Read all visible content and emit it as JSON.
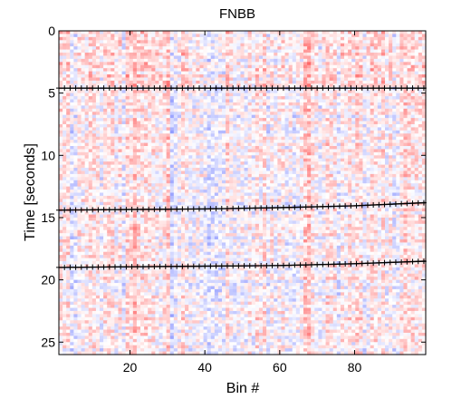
{
  "chart_data": {
    "type": "heatmap",
    "title": "FNBB",
    "xlabel": "Bin #",
    "ylabel": "Time [seconds]",
    "xlim": [
      1,
      99
    ],
    "ylim": [
      0,
      26
    ],
    "y_direction": "down",
    "colormap": [
      "#2233ff",
      "#ffffff",
      "#ff2222"
    ],
    "colormap_note": "diverging blue-white-red",
    "x_ticks": [
      20,
      40,
      60,
      80
    ],
    "y_ticks": [
      0,
      5,
      10,
      15,
      20,
      25
    ],
    "grid": false,
    "legend": "none",
    "overlays": [
      {
        "type": "line-with-markers",
        "marker": "+",
        "color": "#000000",
        "x": [
          1,
          20,
          40,
          60,
          80,
          99
        ],
        "y": [
          4.6,
          4.6,
          4.6,
          4.6,
          4.6,
          4.6
        ]
      },
      {
        "type": "line-with-markers",
        "marker": "+",
        "color": "#000000",
        "x": [
          1,
          20,
          40,
          60,
          80,
          99
        ],
        "y": [
          14.4,
          14.35,
          14.3,
          14.2,
          14.05,
          13.8
        ]
      },
      {
        "type": "line-with-markers",
        "marker": "+",
        "color": "#000000",
        "x": [
          1,
          20,
          40,
          60,
          80,
          99
        ],
        "y": [
          19.0,
          18.95,
          18.9,
          18.85,
          18.7,
          18.5
        ]
      }
    ]
  }
}
